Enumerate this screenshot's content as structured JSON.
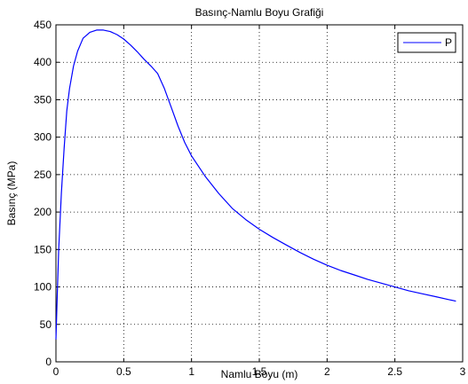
{
  "chart_data": {
    "type": "line",
    "title": "Basınç-Namlu Boyu Grafiği",
    "xlabel": "Namlu Boyu (m)",
    "ylabel": "Basınç (MPa)",
    "xlim": [
      0,
      3
    ],
    "ylim": [
      0,
      450
    ],
    "xticks": [
      0,
      0.5,
      1,
      1.5,
      2,
      2.5,
      3
    ],
    "xtick_labels": [
      "0",
      "0.5",
      "1",
      "1.5",
      "2",
      "2.5",
      "3"
    ],
    "yticks": [
      0,
      50,
      100,
      150,
      200,
      250,
      300,
      350,
      400,
      450
    ],
    "ytick_labels": [
      "0",
      "50",
      "100",
      "150",
      "200",
      "250",
      "300",
      "350",
      "400",
      "450"
    ],
    "grid": true,
    "legend_position": "top-right",
    "series_color": "#0000ff",
    "series": [
      {
        "name": "P",
        "x": [
          0,
          0.01,
          0.02,
          0.04,
          0.06,
          0.08,
          0.1,
          0.13,
          0.16,
          0.2,
          0.25,
          0.3,
          0.35,
          0.4,
          0.45,
          0.5,
          0.55,
          0.6,
          0.65,
          0.7,
          0.75,
          0.8,
          0.85,
          0.9,
          0.95,
          1.0,
          1.1,
          1.2,
          1.3,
          1.4,
          1.5,
          1.6,
          1.7,
          1.8,
          1.9,
          2.0,
          2.1,
          2.2,
          2.3,
          2.4,
          2.5,
          2.6,
          2.7,
          2.8,
          2.9,
          2.95
        ],
        "values": [
          30,
          90,
          150,
          225,
          285,
          335,
          365,
          395,
          415,
          432,
          440,
          443,
          443,
          441,
          437,
          431,
          423,
          414,
          404,
          395,
          385,
          365,
          340,
          315,
          293,
          275,
          248,
          225,
          205,
          190,
          177,
          166,
          156,
          146,
          137,
          129,
          122,
          116,
          110,
          105,
          100,
          95,
          91,
          87,
          83,
          81
        ]
      }
    ]
  }
}
